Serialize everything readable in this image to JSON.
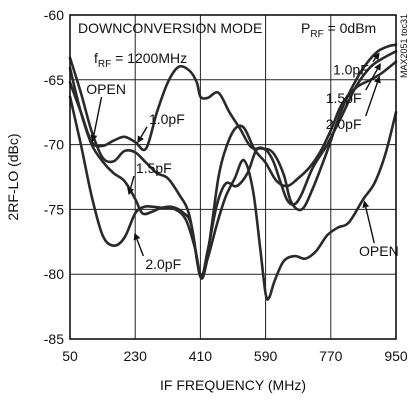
{
  "chart_data": {
    "type": "line",
    "title": "",
    "xlabel": "IF FREQUENCY (MHz)",
    "ylabel": "2RF-LO (dBc)",
    "xlim": [
      50,
      950
    ],
    "ylim": [
      -85,
      -60
    ],
    "x_ticks": [
      50,
      230,
      410,
      590,
      770,
      950
    ],
    "y_ticks": [
      -60,
      -65,
      -70,
      -75,
      -80,
      -85
    ],
    "x_tick_labels": [
      "50",
      "230",
      "410",
      "590",
      "770",
      "950"
    ],
    "y_tick_labels": [
      "-60",
      "-65",
      "-70",
      "-75",
      "-80",
      "-85"
    ],
    "grid": true,
    "annotations": {
      "mode": "DOWNCONVERSION MODE",
      "prf_main": "P",
      "prf_sub": "RF",
      "prf_rest": " = 0dBm",
      "frf_main": "f",
      "frf_sub": "RF",
      "frf_rest": " = 1200MHz",
      "part_number": "MAX2051 toc31"
    },
    "series": [
      {
        "name": "OPEN",
        "points": [
          [
            50,
            -63.3
          ],
          [
            80,
            -66
          ],
          [
            110,
            -69
          ],
          [
            140,
            -71
          ],
          [
            170,
            -71.3
          ],
          [
            200,
            -70.5
          ],
          [
            230,
            -70.6
          ],
          [
            260,
            -71.4
          ],
          [
            290,
            -72.2
          ],
          [
            320,
            -72.6
          ],
          [
            350,
            -73.8
          ],
          [
            380,
            -75.5
          ],
          [
            410,
            -80.2
          ],
          [
            430,
            -78.8
          ],
          [
            455,
            -76.2
          ],
          [
            480,
            -74
          ],
          [
            505,
            -72.6
          ],
          [
            530,
            -71.2
          ],
          [
            555,
            -73.5
          ],
          [
            575,
            -78
          ],
          [
            590,
            -81.5
          ],
          [
            600,
            -81.8
          ],
          [
            615,
            -80.5
          ],
          [
            640,
            -79
          ],
          [
            670,
            -78.6
          ],
          [
            700,
            -78.8
          ],
          [
            730,
            -78.2
          ],
          [
            760,
            -77
          ],
          [
            790,
            -76.4
          ],
          [
            820,
            -76
          ],
          [
            860,
            -74.2
          ],
          [
            890,
            -73
          ],
          [
            920,
            -70.8
          ],
          [
            950,
            -67.5
          ]
        ]
      },
      {
        "name": "1.0pF",
        "points": [
          [
            50,
            -65.2
          ],
          [
            80,
            -67.5
          ],
          [
            110,
            -69.8
          ],
          [
            140,
            -70.1
          ],
          [
            170,
            -69.7
          ],
          [
            200,
            -69.4
          ],
          [
            230,
            -69.8
          ],
          [
            260,
            -70.3
          ],
          [
            290,
            -67.5
          ],
          [
            320,
            -65.2
          ],
          [
            350,
            -64
          ],
          [
            380,
            -64.3
          ],
          [
            400,
            -65.2
          ],
          [
            410,
            -66.3
          ],
          [
            430,
            -66.4
          ],
          [
            460,
            -66
          ],
          [
            490,
            -67.5
          ],
          [
            520,
            -68.8
          ],
          [
            550,
            -70.2
          ],
          [
            580,
            -70.3
          ],
          [
            610,
            -70.6
          ],
          [
            640,
            -72.3
          ],
          [
            660,
            -74.4
          ],
          [
            690,
            -75
          ],
          [
            720,
            -73.4
          ],
          [
            760,
            -70.5
          ],
          [
            800,
            -67.3
          ],
          [
            840,
            -65
          ],
          [
            870,
            -63.7
          ],
          [
            900,
            -62.8
          ],
          [
            930,
            -62.4
          ],
          [
            950,
            -62.3
          ]
        ]
      },
      {
        "name": "1.5pF",
        "points": [
          [
            50,
            -64.1
          ],
          [
            80,
            -67.5
          ],
          [
            110,
            -70
          ],
          [
            140,
            -71.3
          ],
          [
            170,
            -72.2
          ],
          [
            200,
            -72.8
          ],
          [
            230,
            -74.2
          ],
          [
            250,
            -75.3
          ],
          [
            275,
            -75.2
          ],
          [
            300,
            -74.9
          ],
          [
            330,
            -74.8
          ],
          [
            360,
            -75.2
          ],
          [
            385,
            -76.2
          ],
          [
            410,
            -80.2
          ],
          [
            430,
            -78.2
          ],
          [
            455,
            -74.7
          ],
          [
            480,
            -73
          ],
          [
            510,
            -73.2
          ],
          [
            540,
            -72.2
          ],
          [
            565,
            -70.4
          ],
          [
            590,
            -70.4
          ],
          [
            610,
            -71.2
          ],
          [
            630,
            -72.8
          ],
          [
            650,
            -74.3
          ],
          [
            670,
            -74.6
          ],
          [
            690,
            -73.8
          ],
          [
            720,
            -71.8
          ],
          [
            760,
            -70
          ],
          [
            800,
            -67.8
          ],
          [
            840,
            -65.5
          ],
          [
            880,
            -64
          ],
          [
            910,
            -63.4
          ],
          [
            950,
            -62.8
          ]
        ]
      },
      {
        "name": "2.0pF",
        "points": [
          [
            50,
            -66.3
          ],
          [
            80,
            -70
          ],
          [
            110,
            -74
          ],
          [
            140,
            -77
          ],
          [
            170,
            -77.8
          ],
          [
            200,
            -77.2
          ],
          [
            230,
            -75.3
          ],
          [
            255,
            -74.8
          ],
          [
            280,
            -74.8
          ],
          [
            310,
            -74.9
          ],
          [
            340,
            -75
          ],
          [
            370,
            -75.8
          ],
          [
            395,
            -78
          ],
          [
            410,
            -80
          ],
          [
            425,
            -79.3
          ],
          [
            440,
            -76.5
          ],
          [
            460,
            -72.5
          ],
          [
            480,
            -70.3
          ],
          [
            505,
            -68.8
          ],
          [
            530,
            -68.7
          ],
          [
            560,
            -70.4
          ],
          [
            590,
            -71.4
          ],
          [
            620,
            -72.8
          ],
          [
            650,
            -73.2
          ],
          [
            680,
            -72.6
          ],
          [
            710,
            -71.8
          ],
          [
            740,
            -70.6
          ],
          [
            770,
            -68.9
          ],
          [
            800,
            -66.9
          ],
          [
            840,
            -65.6
          ],
          [
            880,
            -65
          ],
          [
            910,
            -64.5
          ],
          [
            950,
            -63.6
          ]
        ]
      }
    ],
    "labels": [
      {
        "text": "OPEN",
        "series": "OPEN",
        "tx": 95,
        "ty": -66.1,
        "at": [
          112,
          -69.8
        ],
        "text_anchor": "start"
      },
      {
        "text": "1.0pF",
        "series": "1.0pF",
        "tx": 268,
        "ty": -68.4,
        "at": [
          236,
          -69.9
        ],
        "text_anchor": "start"
      },
      {
        "text": "1.5pF",
        "series": "1.5pF",
        "tx": 232,
        "ty": -72.2,
        "at": [
          212,
          -73.9
        ],
        "text_anchor": "start"
      },
      {
        "text": "2.0pF",
        "series": "2.0pF",
        "tx": 258,
        "ty": -79.6,
        "at": [
          228,
          -76.8
        ],
        "text_anchor": "start"
      },
      {
        "text": "1.0pF",
        "series": "1.0pF",
        "tx": 776,
        "ty": -64.6,
        "at": [
          905,
          -62.9
        ],
        "text_anchor": "start"
      },
      {
        "text": "1.5pF",
        "series": "1.5pF",
        "tx": 756,
        "ty": -66.8,
        "at": [
          908,
          -63.7
        ],
        "text_anchor": "start"
      },
      {
        "text": "2.0pF",
        "series": "2.0pF",
        "tx": 756,
        "ty": -68.8,
        "at": [
          905,
          -64.7
        ],
        "text_anchor": "start"
      },
      {
        "text": "OPEN",
        "series": "OPEN",
        "tx": 848,
        "ty": -78.6,
        "at": [
          862,
          -74.3
        ],
        "text_anchor": "start"
      }
    ]
  }
}
